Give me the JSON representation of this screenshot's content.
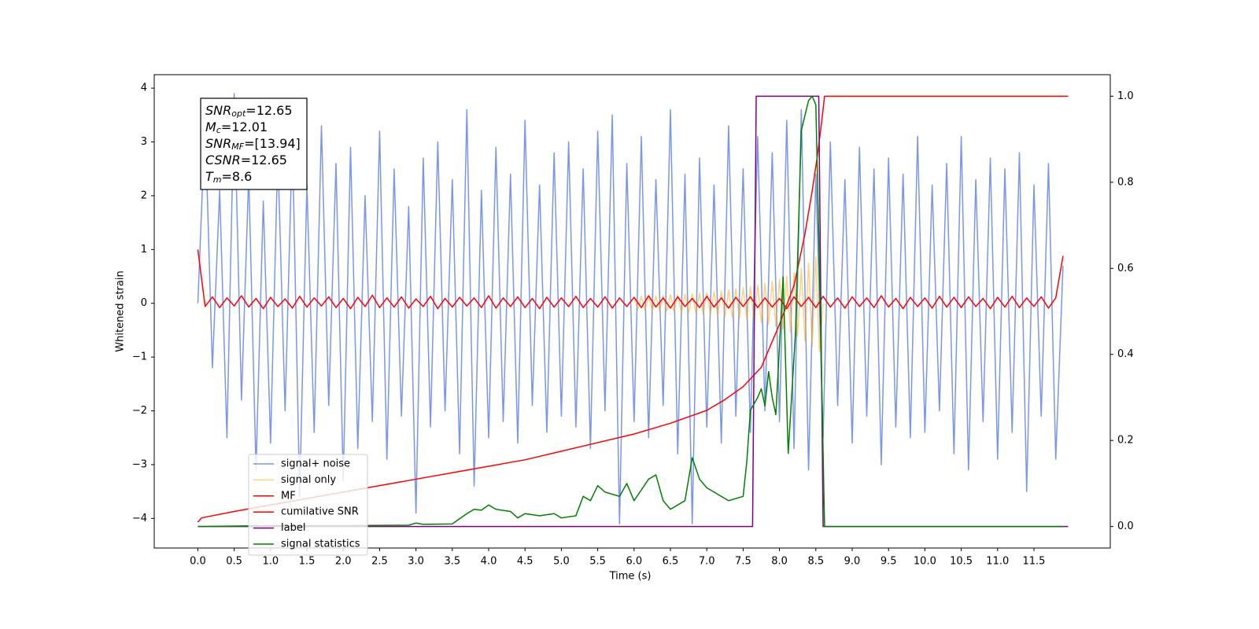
{
  "chart_data": {
    "type": "line",
    "xlabel": "Time (s)",
    "ylabel": "Whitened strain",
    "xlim": [
      -0.6,
      12.55
    ],
    "ylim": [
      -4.55,
      4.25
    ],
    "y2lim": [
      -0.05,
      1.05
    ],
    "xticks": [
      {
        "value": 0,
        "label": "0.0"
      },
      {
        "value": 0.5,
        "label": "0.5"
      },
      {
        "value": 1,
        "label": "1.0"
      },
      {
        "value": 1.5,
        "label": "1.5"
      },
      {
        "value": 2,
        "label": "2.0"
      },
      {
        "value": 2.5,
        "label": "2.5"
      },
      {
        "value": 3,
        "label": "3.0"
      },
      {
        "value": 3.5,
        "label": "3.5"
      },
      {
        "value": 4,
        "label": "4.0"
      },
      {
        "value": 4.5,
        "label": "4.5"
      },
      {
        "value": 5,
        "label": "5.0"
      },
      {
        "value": 5.5,
        "label": "5.5"
      },
      {
        "value": 6,
        "label": "6.0"
      },
      {
        "value": 6.5,
        "label": "6.5"
      },
      {
        "value": 7,
        "label": "7.0"
      },
      {
        "value": 7.5,
        "label": "7.5"
      },
      {
        "value": 8,
        "label": "8.0"
      },
      {
        "value": 8.5,
        "label": "8.5"
      },
      {
        "value": 9,
        "label": "9.0"
      },
      {
        "value": 9.5,
        "label": "9.5"
      },
      {
        "value": 10,
        "label": "10.0"
      },
      {
        "value": 10.5,
        "label": "10.5"
      },
      {
        "value": 11,
        "label": "11.0"
      },
      {
        "value": 11.5,
        "label": "11.5"
      }
    ],
    "yticks": [
      {
        "value": -4,
        "label": "−4"
      },
      {
        "value": -3,
        "label": "−3"
      },
      {
        "value": -2,
        "label": "−2"
      },
      {
        "value": -1,
        "label": "−1"
      },
      0,
      1,
      2,
      3,
      4
    ],
    "y2ticks": [
      {
        "value": 0,
        "label": "0.0"
      },
      {
        "value": 0.2,
        "label": "0.2"
      },
      {
        "value": 0.4,
        "label": "0.4"
      },
      {
        "value": 0.6,
        "label": "0.6"
      },
      {
        "value": 0.8,
        "label": "0.8"
      },
      {
        "value": 1,
        "label": "1.0"
      }
    ],
    "legend": "lower left",
    "annotation": {
      "lines": [
        {
          "symbol": "SNR",
          "subscript": "opt",
          "text": "=12.65"
        },
        {
          "symbol": "M",
          "subscript": "c",
          "text": "=12.01"
        },
        {
          "symbol": "SNR",
          "subscript": "MF",
          "text": "=[13.94]"
        },
        {
          "symbol": "CSNR",
          "text": "=12.65"
        },
        {
          "symbol": "T",
          "subscript": "m",
          "text": "=8.6"
        }
      ]
    },
    "x": [
      0,
      0.1,
      0.2,
      0.3,
      0.4,
      0.5,
      0.6,
      0.7,
      0.8,
      0.9,
      1,
      1.1,
      1.2,
      1.3,
      1.4,
      1.5,
      1.6,
      1.7,
      1.8,
      1.9,
      2,
      2.1,
      2.2,
      2.3,
      2.4,
      2.5,
      2.6,
      2.7,
      2.8,
      2.9,
      3,
      3.1,
      3.2,
      3.3,
      3.4,
      3.5,
      3.6,
      3.7,
      3.8,
      3.9,
      4,
      4.1,
      4.2,
      4.3,
      4.4,
      4.5,
      4.6,
      4.7,
      4.8,
      4.9,
      5,
      5.1,
      5.2,
      5.3,
      5.4,
      5.5,
      5.6,
      5.7,
      5.8,
      5.9,
      6,
      6.1,
      6.2,
      6.3,
      6.4,
      6.5,
      6.6,
      6.7,
      6.8,
      6.9,
      7,
      7.1,
      7.2,
      7.3,
      7.4,
      7.5,
      7.6,
      7.7,
      7.8,
      7.9,
      8,
      8.1,
      8.2,
      8.3,
      8.4,
      8.5,
      8.6,
      8.7,
      8.8,
      8.9,
      9,
      9.1,
      9.2,
      9.3,
      9.4,
      9.5,
      9.6,
      9.7,
      9.8,
      9.9,
      10,
      10.1,
      10.2,
      10.3,
      10.4,
      10.5,
      10.6,
      10.7,
      10.8,
      10.9,
      11,
      11.1,
      11.2,
      11.3,
      11.4,
      11.5,
      11.6,
      11.7,
      11.8,
      11.9
    ],
    "series": [
      {
        "name": "signal+ noise",
        "color": "#4169e1",
        "opacity": 0.7,
        "values": [
          0.0,
          3.4,
          -1.2,
          2.1,
          -2.5,
          3.9,
          -1.8,
          2.4,
          -3.1,
          1.9,
          -2.6,
          2.8,
          -2.0,
          3.1,
          -3.6,
          2.2,
          -2.4,
          3.3,
          -1.9,
          2.6,
          -3.3,
          2.9,
          -2.7,
          2.0,
          -2.2,
          3.2,
          -2.9,
          2.5,
          -2.1,
          1.8,
          -3.9,
          2.7,
          -2.3,
          3.0,
          -2.0,
          2.3,
          -2.8,
          3.6,
          -3.4,
          2.1,
          -2.5,
          2.9,
          -2.2,
          2.4,
          -2.6,
          3.4,
          -1.9,
          2.2,
          -2.4,
          2.8,
          -2.1,
          3.0,
          -2.3,
          2.5,
          -2.7,
          3.2,
          -2.0,
          3.5,
          -4.1,
          2.6,
          -2.2,
          3.1,
          -2.5,
          2.3,
          -1.9,
          3.6,
          -2.8,
          2.4,
          -4.1,
          2.7,
          -2.3,
          2.2,
          -2.6,
          3.3,
          -2.1,
          2.5,
          -2.4,
          3.1,
          -2.0,
          2.8,
          -2.2,
          3.4,
          -2.7,
          3.6,
          -3.1,
          2.4,
          -2.5,
          3.0,
          -1.9,
          2.3,
          -2.6,
          2.9,
          -2.1,
          2.5,
          -3.0,
          2.7,
          -2.3,
          2.4,
          -2.5,
          3.1,
          -2.4,
          2.2,
          -2.0,
          2.6,
          -2.8,
          3.1,
          -3.1,
          2.3,
          -2.2,
          2.7,
          -2.9,
          2.5,
          -2.4,
          2.8,
          -3.5,
          2.2,
          -2.1,
          2.6,
          -2.9,
          0.7
        ]
      },
      {
        "name": "signal only",
        "color": "orange",
        "opacity": 0.5,
        "x": [
          6.0,
          6.05,
          6.1,
          6.15,
          6.2,
          6.25,
          6.3,
          6.35,
          6.4,
          6.45,
          6.5,
          6.55,
          6.6,
          6.65,
          6.7,
          6.75,
          6.8,
          6.85,
          6.9,
          6.95,
          7.0,
          7.05,
          7.1,
          7.15,
          7.2,
          7.25,
          7.3,
          7.35,
          7.4,
          7.45,
          7.5,
          7.55,
          7.6,
          7.65,
          7.7,
          7.75,
          7.8,
          7.85,
          7.9,
          7.95,
          8.0,
          8.05,
          8.1,
          8.15,
          8.2,
          8.25,
          8.3,
          8.35,
          8.4,
          8.45,
          8.5,
          8.55,
          8.6
        ],
        "values": [
          0.12,
          -0.12,
          0.13,
          -0.13,
          0.13,
          -0.14,
          0.14,
          -0.14,
          0.15,
          -0.15,
          0.16,
          -0.16,
          0.16,
          -0.17,
          0.17,
          -0.18,
          0.18,
          -0.19,
          0.19,
          -0.2,
          0.2,
          -0.21,
          0.22,
          -0.22,
          0.23,
          -0.24,
          0.25,
          -0.26,
          0.27,
          -0.28,
          0.29,
          -0.3,
          0.31,
          -0.33,
          0.34,
          -0.36,
          0.37,
          -0.39,
          0.41,
          -0.43,
          0.45,
          -0.48,
          0.51,
          -0.54,
          0.57,
          -0.61,
          0.65,
          -0.7,
          0.75,
          -0.8,
          0.86,
          -0.9,
          0.0
        ]
      },
      {
        "name": "MF",
        "color": "red",
        "opacity": 1,
        "values": [
          1.0,
          -0.06,
          0.12,
          -0.08,
          0.1,
          -0.05,
          0.14,
          -0.07,
          0.09,
          -0.1,
          0.11,
          -0.06,
          0.08,
          -0.09,
          0.13,
          -0.07,
          0.1,
          -0.05,
          0.12,
          -0.08,
          0.09,
          -0.1,
          0.11,
          -0.06,
          0.15,
          -0.08,
          0.1,
          -0.07,
          0.12,
          -0.09,
          0.08,
          -0.06,
          0.13,
          -0.1,
          0.09,
          -0.07,
          0.11,
          -0.05,
          0.1,
          -0.08,
          0.14,
          -0.09,
          0.1,
          -0.06,
          0.12,
          -0.08,
          0.09,
          -0.1,
          0.11,
          -0.07,
          0.1,
          -0.06,
          0.13,
          -0.08,
          0.09,
          -0.07,
          0.12,
          -0.09,
          0.1,
          -0.06,
          0.11,
          -0.08,
          0.14,
          -0.07,
          0.1,
          -0.09,
          0.12,
          -0.06,
          0.09,
          -0.08,
          0.13,
          -0.07,
          0.1,
          -0.09,
          0.11,
          -0.06,
          0.12,
          -0.08,
          0.1,
          -0.07,
          0.09,
          -0.1,
          0.12,
          -0.06,
          0.11,
          -0.08,
          0.13,
          -0.07,
          0.1,
          -0.09,
          0.12,
          -0.06,
          0.1,
          -0.08,
          0.14,
          -0.07,
          0.09,
          -0.1,
          0.11,
          -0.06,
          0.1,
          -0.09,
          0.13,
          -0.07,
          0.11,
          -0.08,
          0.12,
          -0.06,
          0.09,
          -0.1,
          0.11,
          -0.07,
          0.13,
          -0.08,
          0.1,
          -0.06,
          0.12,
          -0.09,
          0.1,
          0.88
        ]
      },
      {
        "name": "cumilative SNR",
        "color": "red",
        "opacity": 1,
        "axis": "y2",
        "x": [
          0,
          0.05,
          0.5,
          1,
          1.5,
          2,
          2.5,
          3,
          3.5,
          4,
          4.5,
          5,
          5.5,
          6,
          6.5,
          7,
          7.25,
          7.5,
          7.75,
          8,
          8.2,
          8.35,
          8.45,
          8.52,
          8.58,
          8.62,
          11.97
        ],
        "values": [
          0.01,
          0.02,
          0.035,
          0.05,
          0.065,
          0.08,
          0.095,
          0.11,
          0.125,
          0.14,
          0.155,
          0.175,
          0.195,
          0.215,
          0.24,
          0.27,
          0.295,
          0.325,
          0.37,
          0.47,
          0.56,
          0.68,
          0.78,
          0.86,
          0.94,
          1.0,
          1.0
        ]
      },
      {
        "name": "label",
        "color": "purple",
        "opacity": 1,
        "axis": "y2",
        "x": [
          0,
          7.63,
          7.68,
          8.54,
          8.6,
          11.97
        ],
        "values": [
          0,
          0,
          1,
          1,
          0,
          0
        ]
      },
      {
        "name": "signal statistics",
        "color": "green",
        "opacity": 1,
        "axis": "y2",
        "x": [
          0,
          1,
          2,
          2.9,
          3.0,
          3.1,
          3.5,
          3.7,
          3.8,
          3.9,
          4.0,
          4.1,
          4.3,
          4.4,
          4.5,
          4.7,
          4.9,
          5.0,
          5.2,
          5.3,
          5.4,
          5.5,
          5.6,
          5.8,
          5.9,
          6.0,
          6.2,
          6.3,
          6.4,
          6.5,
          6.7,
          6.8,
          6.9,
          7.0,
          7.1,
          7.3,
          7.5,
          7.55,
          7.6,
          7.7,
          7.75,
          7.8,
          7.85,
          7.9,
          7.95,
          8.05,
          8.12,
          8.22,
          8.3,
          8.4,
          8.45,
          8.5,
          8.55,
          8.62,
          11.9
        ],
        "values": [
          0,
          0.002,
          0.002,
          0.003,
          0.008,
          0.005,
          0.006,
          0.03,
          0.04,
          0.038,
          0.05,
          0.04,
          0.035,
          0.02,
          0.03,
          0.025,
          0.03,
          0.02,
          0.025,
          0.07,
          0.06,
          0.095,
          0.08,
          0.07,
          0.1,
          0.06,
          0.11,
          0.12,
          0.06,
          0.04,
          0.06,
          0.16,
          0.11,
          0.09,
          0.08,
          0.06,
          0.07,
          0.15,
          0.27,
          0.3,
          0.32,
          0.28,
          0.36,
          0.3,
          0.26,
          0.58,
          0.17,
          0.45,
          0.92,
          0.99,
          1.0,
          0.98,
          0.6,
          0.0,
          0.0
        ]
      }
    ]
  }
}
